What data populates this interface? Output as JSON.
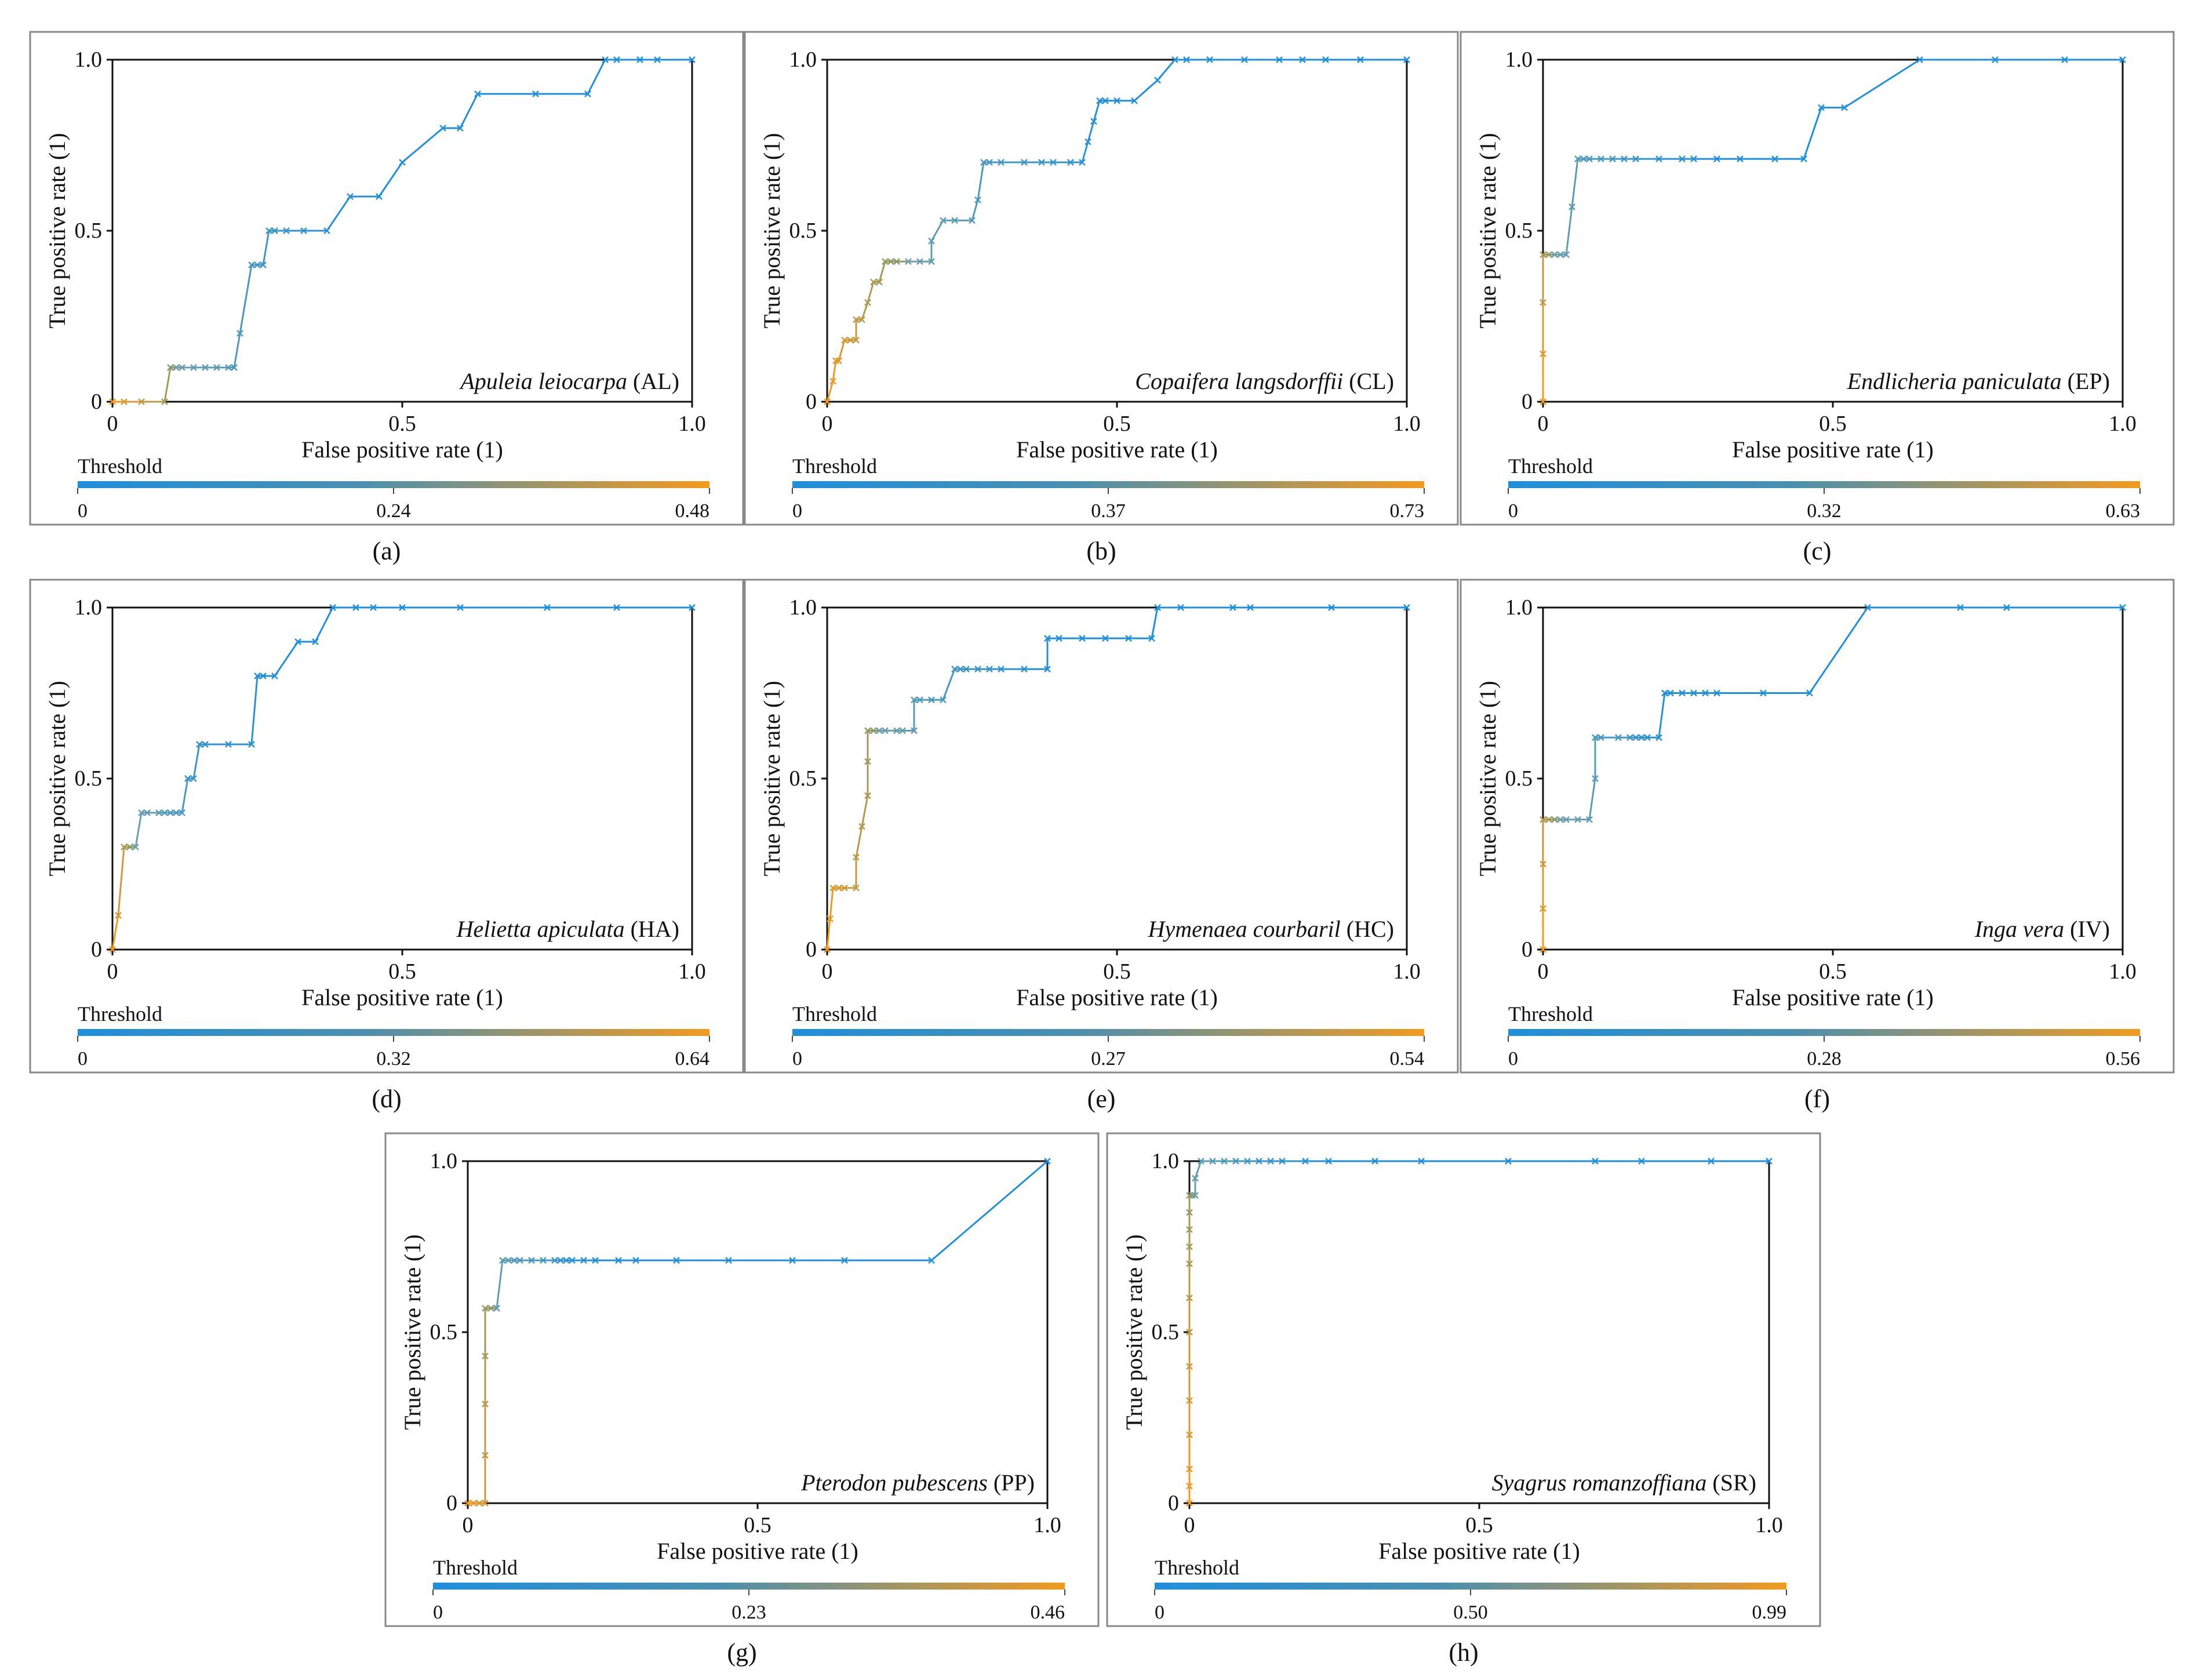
{
  "figure": {
    "axis_x_label": "False positive rate (1)",
    "axis_y_label": "True positive rate (1)",
    "threshold_label": "Threshold",
    "colors": {
      "low": "#1E8FDC",
      "high": "#F39A1E",
      "frame": "#111111",
      "panel_border": "#888888"
    }
  },
  "chart_data": [
    {
      "type": "line",
      "panel": "(a)",
      "title": "Apuleia leiocarpa",
      "code": "(AL)",
      "xlabel": "False positive rate (1)",
      "ylabel": "True positive rate (1)",
      "xlim": [
        0,
        1
      ],
      "ylim": [
        0,
        1
      ],
      "x_ticks": [
        "0",
        "0.5",
        "1.0"
      ],
      "y_ticks": [
        "0",
        "0.5",
        "1.0"
      ],
      "threshold_ticks": [
        "0",
        "0.24",
        "0.48"
      ],
      "x": [
        0,
        0.02,
        0.05,
        0.09,
        0.1,
        0.11,
        0.12,
        0.14,
        0.16,
        0.18,
        0.2,
        0.21,
        0.22,
        0.24,
        0.25,
        0.26,
        0.27,
        0.28,
        0.3,
        0.33,
        0.37,
        0.41,
        0.46,
        0.5,
        0.57,
        0.6,
        0.63,
        0.73,
        0.82,
        0.85,
        0.87,
        0.91,
        0.94,
        1.0
      ],
      "y": [
        0,
        0,
        0,
        0,
        0.1,
        0.1,
        0.1,
        0.1,
        0.1,
        0.1,
        0.1,
        0.1,
        0.2,
        0.4,
        0.4,
        0.4,
        0.5,
        0.5,
        0.5,
        0.5,
        0.5,
        0.6,
        0.6,
        0.7,
        0.8,
        0.8,
        0.9,
        0.9,
        0.9,
        1.0,
        1.0,
        1.0,
        1.0,
        1.0
      ],
      "color_split": 4
    },
    {
      "type": "line",
      "panel": "(b)",
      "title": "Copaifera langsdorffii",
      "code": "(CL)",
      "xlabel": "False positive rate (1)",
      "ylabel": "True positive rate (1)",
      "xlim": [
        0,
        1
      ],
      "ylim": [
        0,
        1
      ],
      "x_ticks": [
        "0",
        "0.5",
        "1.0"
      ],
      "y_ticks": [
        "0",
        "0.5",
        "1.0"
      ],
      "threshold_ticks": [
        "0",
        "0.37",
        "0.73"
      ],
      "x": [
        0,
        0.01,
        0.015,
        0.02,
        0.03,
        0.04,
        0.05,
        0.05,
        0.06,
        0.07,
        0.08,
        0.09,
        0.1,
        0.11,
        0.12,
        0.14,
        0.16,
        0.18,
        0.18,
        0.2,
        0.22,
        0.25,
        0.26,
        0.27,
        0.28,
        0.3,
        0.34,
        0.37,
        0.39,
        0.42,
        0.44,
        0.45,
        0.46,
        0.47,
        0.48,
        0.5,
        0.53,
        0.57,
        0.6,
        0.62,
        0.66,
        0.72,
        0.78,
        0.82,
        0.86,
        0.92,
        1.0
      ],
      "y": [
        0,
        0.06,
        0.12,
        0.12,
        0.18,
        0.18,
        0.18,
        0.24,
        0.24,
        0.29,
        0.35,
        0.35,
        0.41,
        0.41,
        0.41,
        0.41,
        0.41,
        0.41,
        0.47,
        0.53,
        0.53,
        0.53,
        0.59,
        0.7,
        0.7,
        0.7,
        0.7,
        0.7,
        0.7,
        0.7,
        0.7,
        0.76,
        0.82,
        0.88,
        0.88,
        0.88,
        0.88,
        0.94,
        1.0,
        1.0,
        1.0,
        1.0,
        1.0,
        1.0,
        1.0,
        1.0,
        1.0
      ],
      "color_split": 14
    },
    {
      "type": "line",
      "panel": "(c)",
      "title": "Endlicheria paniculata",
      "code": "(EP)",
      "xlabel": "False positive rate (1)",
      "ylabel": "True positive rate (1)",
      "xlim": [
        0,
        1
      ],
      "ylim": [
        0,
        1
      ],
      "x_ticks": [
        "0",
        "0.5",
        "1.0"
      ],
      "y_ticks": [
        "0",
        "0.5",
        "1.0"
      ],
      "threshold_ticks": [
        "0",
        "0.32",
        "0.63"
      ],
      "x": [
        0,
        0,
        0,
        0,
        0.01,
        0.02,
        0.03,
        0.04,
        0.05,
        0.06,
        0.07,
        0.08,
        0.1,
        0.12,
        0.14,
        0.16,
        0.2,
        0.24,
        0.26,
        0.3,
        0.34,
        0.4,
        0.45,
        0.48,
        0.52,
        0.65,
        0.78,
        0.9,
        1.0
      ],
      "y": [
        0,
        0.14,
        0.29,
        0.43,
        0.43,
        0.43,
        0.43,
        0.43,
        0.57,
        0.71,
        0.71,
        0.71,
        0.71,
        0.71,
        0.71,
        0.71,
        0.71,
        0.71,
        0.71,
        0.71,
        0.71,
        0.71,
        0.71,
        0.86,
        0.86,
        1.0,
        1.0,
        1.0,
        1.0
      ],
      "color_split": 4
    },
    {
      "type": "line",
      "panel": "(d)",
      "title": "Helietta apiculata",
      "code": "(HA)",
      "xlabel": "False positive rate (1)",
      "ylabel": "True positive rate (1)",
      "xlim": [
        0,
        1
      ],
      "ylim": [
        0,
        1
      ],
      "x_ticks": [
        "0",
        "0.5",
        "1.0"
      ],
      "y_ticks": [
        "0",
        "0.5",
        "1.0"
      ],
      "threshold_ticks": [
        "0",
        "0.32",
        "0.64"
      ],
      "x": [
        0,
        0.01,
        0.02,
        0.03,
        0.04,
        0.05,
        0.06,
        0.08,
        0.09,
        0.1,
        0.11,
        0.12,
        0.13,
        0.13,
        0.14,
        0.15,
        0.16,
        0.2,
        0.24,
        0.25,
        0.26,
        0.28,
        0.32,
        0.35,
        0.38,
        0.42,
        0.45,
        0.5,
        0.6,
        0.75,
        0.87,
        1.0
      ],
      "y": [
        0,
        0.1,
        0.3,
        0.3,
        0.3,
        0.4,
        0.4,
        0.4,
        0.4,
        0.4,
        0.4,
        0.4,
        0.5,
        0.5,
        0.5,
        0.6,
        0.6,
        0.6,
        0.6,
        0.8,
        0.8,
        0.8,
        0.9,
        0.9,
        1.0,
        1.0,
        1.0,
        1.0,
        1.0,
        1.0,
        1.0,
        1.0
      ],
      "color_split": 3
    },
    {
      "type": "line",
      "panel": "(e)",
      "title": "Hymenaea courbaril",
      "code": "(HC)",
      "xlabel": "False positive rate (1)",
      "ylabel": "True positive rate (1)",
      "xlim": [
        0,
        1
      ],
      "ylim": [
        0,
        1
      ],
      "x_ticks": [
        "0",
        "0.5",
        "1.0"
      ],
      "y_ticks": [
        "0",
        "0.5",
        "1.0"
      ],
      "threshold_ticks": [
        "0",
        "0.27",
        "0.54"
      ],
      "x": [
        0,
        0.005,
        0.01,
        0.02,
        0.03,
        0.05,
        0.05,
        0.06,
        0.07,
        0.07,
        0.07,
        0.08,
        0.09,
        0.1,
        0.12,
        0.13,
        0.15,
        0.15,
        0.16,
        0.18,
        0.2,
        0.22,
        0.23,
        0.24,
        0.26,
        0.28,
        0.3,
        0.34,
        0.38,
        0.38,
        0.4,
        0.44,
        0.48,
        0.52,
        0.56,
        0.57,
        0.61,
        0.7,
        0.73,
        0.87,
        1.0
      ],
      "y": [
        0,
        0.09,
        0.18,
        0.18,
        0.18,
        0.18,
        0.27,
        0.36,
        0.45,
        0.55,
        0.64,
        0.64,
        0.64,
        0.64,
        0.64,
        0.64,
        0.64,
        0.73,
        0.73,
        0.73,
        0.73,
        0.82,
        0.82,
        0.82,
        0.82,
        0.82,
        0.82,
        0.82,
        0.82,
        0.91,
        0.91,
        0.91,
        0.91,
        0.91,
        0.91,
        1.0,
        1.0,
        1.0,
        1.0,
        1.0,
        1.0
      ],
      "color_split": 11
    },
    {
      "type": "line",
      "panel": "(f)",
      "title": "Inga vera",
      "code": "(IV)",
      "xlabel": "False positive rate (1)",
      "ylabel": "True positive rate (1)",
      "xlim": [
        0,
        1
      ],
      "ylim": [
        0,
        1
      ],
      "x_ticks": [
        "0",
        "0.5",
        "1.0"
      ],
      "y_ticks": [
        "0",
        "0.5",
        "1.0"
      ],
      "threshold_ticks": [
        "0",
        "0.28",
        "0.56"
      ],
      "x": [
        0,
        0,
        0,
        0,
        0.01,
        0.02,
        0.03,
        0.04,
        0.06,
        0.08,
        0.09,
        0.09,
        0.09,
        0.1,
        0.13,
        0.15,
        0.16,
        0.17,
        0.18,
        0.2,
        0.21,
        0.22,
        0.24,
        0.26,
        0.28,
        0.3,
        0.38,
        0.46,
        0.56,
        0.72,
        0.8,
        1.0
      ],
      "y": [
        0,
        0.12,
        0.25,
        0.38,
        0.38,
        0.38,
        0.38,
        0.38,
        0.38,
        0.38,
        0.5,
        0.62,
        0.62,
        0.62,
        0.62,
        0.62,
        0.62,
        0.62,
        0.62,
        0.62,
        0.75,
        0.75,
        0.75,
        0.75,
        0.75,
        0.75,
        0.75,
        0.75,
        1.0,
        1.0,
        1.0,
        1.0
      ],
      "color_split": 5
    },
    {
      "type": "line",
      "panel": "(g)",
      "title": "Pterodon pubescens",
      "code": "(PP)",
      "xlabel": "False positive rate (1)",
      "ylabel": "True positive rate (1)",
      "xlim": [
        0,
        1
      ],
      "ylim": [
        0,
        1
      ],
      "x_ticks": [
        "0",
        "0.5",
        "1.0"
      ],
      "y_ticks": [
        "0",
        "0.5",
        "1.0"
      ],
      "threshold_ticks": [
        "0",
        "0.23",
        "0.46"
      ],
      "x": [
        0,
        0.01,
        0.02,
        0.03,
        0.03,
        0.03,
        0.03,
        0.03,
        0.04,
        0.05,
        0.05,
        0.06,
        0.07,
        0.08,
        0.09,
        0.11,
        0.13,
        0.15,
        0.16,
        0.17,
        0.18,
        0.2,
        0.22,
        0.26,
        0.29,
        0.36,
        0.45,
        0.56,
        0.65,
        0.8,
        1.0
      ],
      "y": [
        0,
        0,
        0,
        0,
        0.14,
        0.29,
        0.43,
        0.57,
        0.57,
        0.57,
        0.57,
        0.71,
        0.71,
        0.71,
        0.71,
        0.71,
        0.71,
        0.71,
        0.71,
        0.71,
        0.71,
        0.71,
        0.71,
        0.71,
        0.71,
        0.71,
        0.71,
        0.71,
        0.71,
        0.71,
        1.0
      ],
      "color_split": 8
    },
    {
      "type": "line",
      "panel": "(h)",
      "title": "Syagrus romanzoffiana",
      "code": "(SR)",
      "xlabel": "False positive rate (1)",
      "ylabel": "True positive rate (1)",
      "xlim": [
        0,
        1
      ],
      "ylim": [
        0,
        1
      ],
      "x_ticks": [
        "0",
        "0.5",
        "1.0"
      ],
      "y_ticks": [
        "0",
        "0.5",
        "1.0"
      ],
      "threshold_ticks": [
        "0",
        "0.50",
        "0.99"
      ],
      "x": [
        0,
        0,
        0,
        0,
        0,
        0,
        0,
        0,
        0,
        0,
        0,
        0,
        0,
        0.005,
        0.01,
        0.01,
        0.02,
        0.04,
        0.06,
        0.08,
        0.1,
        0.12,
        0.14,
        0.16,
        0.2,
        0.24,
        0.32,
        0.4,
        0.55,
        0.7,
        0.78,
        0.9,
        1.0
      ],
      "y": [
        0,
        0.05,
        0.1,
        0.2,
        0.3,
        0.4,
        0.5,
        0.6,
        0.7,
        0.75,
        0.8,
        0.85,
        0.9,
        0.9,
        0.9,
        0.95,
        1.0,
        1.0,
        1.0,
        1.0,
        1.0,
        1.0,
        1.0,
        1.0,
        1.0,
        1.0,
        1.0,
        1.0,
        1.0,
        1.0,
        1.0,
        1.0,
        1.0
      ],
      "color_split": 13
    }
  ]
}
